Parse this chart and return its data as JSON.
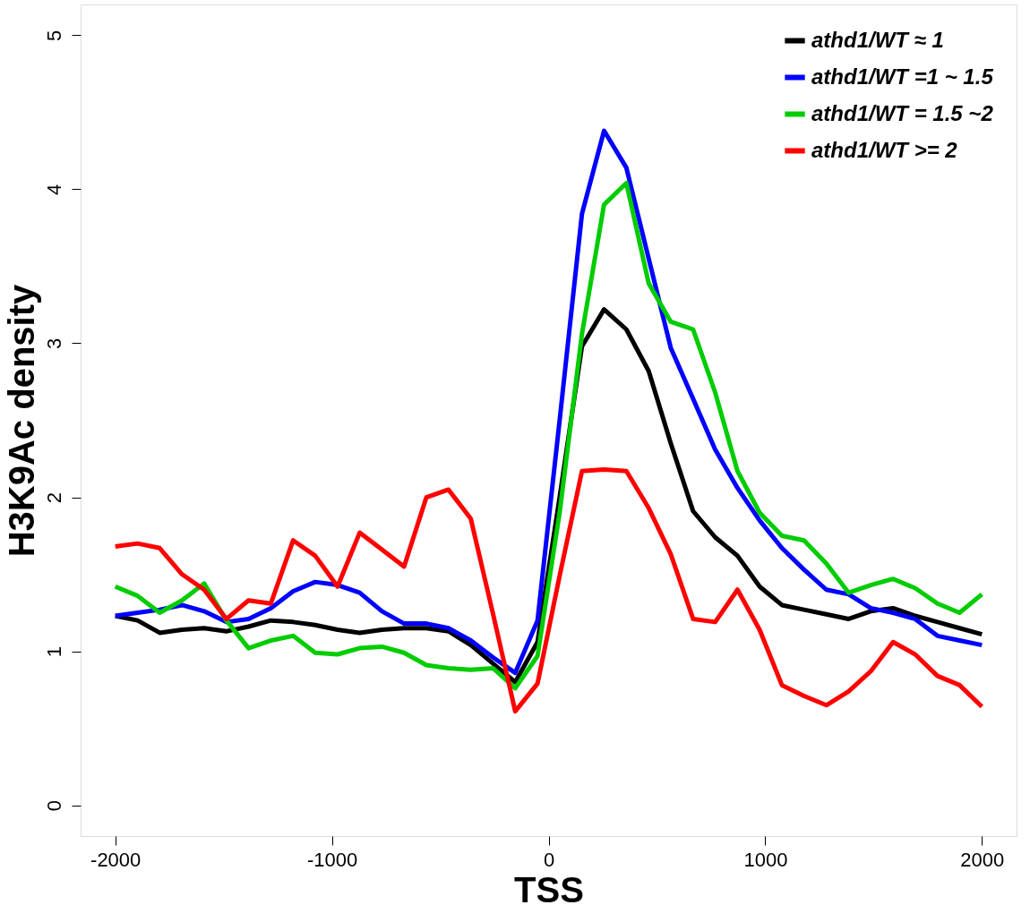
{
  "chart_data": {
    "type": "line",
    "xlabel": "TSS",
    "ylabel": "H3K9Ac density",
    "x": [
      -2000,
      -1897,
      -1795,
      -1692,
      -1590,
      -1487,
      -1385,
      -1282,
      -1179,
      -1077,
      -974,
      -872,
      -769,
      -667,
      -564,
      -462,
      -359,
      -256,
      -154,
      -51,
      51,
      154,
      256,
      359,
      462,
      564,
      667,
      769,
      872,
      974,
      1077,
      1179,
      1282,
      1385,
      1487,
      1590,
      1692,
      1795,
      1897,
      2000
    ],
    "series": [
      {
        "name": "athd1/WT ≈ 1",
        "color": "#000000",
        "values": [
          1.23,
          1.2,
          1.12,
          1.14,
          1.15,
          1.13,
          1.16,
          1.2,
          1.19,
          1.17,
          1.14,
          1.12,
          1.14,
          1.15,
          1.15,
          1.13,
          1.04,
          0.92,
          0.8,
          1.06,
          2.0,
          2.98,
          3.22,
          3.09,
          2.82,
          2.35,
          1.91,
          1.74,
          1.62,
          1.42,
          1.3,
          1.27,
          1.24,
          1.21,
          1.26,
          1.28,
          1.23,
          1.19,
          1.15,
          1.11
        ]
      },
      {
        "name": "athd1/WT =1 ~ 1.5",
        "color": "#0000ff",
        "values": [
          1.23,
          1.25,
          1.27,
          1.3,
          1.26,
          1.19,
          1.21,
          1.28,
          1.39,
          1.45,
          1.43,
          1.38,
          1.26,
          1.18,
          1.18,
          1.15,
          1.07,
          0.96,
          0.86,
          1.2,
          2.5,
          3.84,
          4.38,
          4.14,
          3.55,
          2.97,
          2.64,
          2.31,
          2.06,
          1.85,
          1.67,
          1.53,
          1.4,
          1.37,
          1.28,
          1.25,
          1.21,
          1.1,
          1.07,
          1.04
        ]
      },
      {
        "name": "athd1/WT = 1.5 ~2",
        "color": "#00cc00",
        "values": [
          1.42,
          1.36,
          1.25,
          1.33,
          1.44,
          1.2,
          1.02,
          1.07,
          1.1,
          0.99,
          0.98,
          1.02,
          1.03,
          0.99,
          0.91,
          0.89,
          0.88,
          0.89,
          0.76,
          0.97,
          1.9,
          3.06,
          3.9,
          4.04,
          3.39,
          3.14,
          3.09,
          2.68,
          2.17,
          1.9,
          1.75,
          1.72,
          1.57,
          1.38,
          1.43,
          1.47,
          1.41,
          1.31,
          1.25,
          1.37
        ]
      },
      {
        "name": "athd1/WT >= 2",
        "color": "#ff0000",
        "values": [
          1.68,
          1.7,
          1.67,
          1.5,
          1.4,
          1.21,
          1.33,
          1.31,
          1.72,
          1.62,
          1.42,
          1.77,
          1.66,
          1.55,
          2.0,
          2.05,
          1.86,
          1.24,
          0.61,
          0.79,
          1.49,
          2.17,
          2.18,
          2.17,
          1.93,
          1.63,
          1.21,
          1.19,
          1.4,
          1.14,
          0.78,
          0.71,
          0.65,
          0.74,
          0.87,
          1.06,
          0.98,
          0.84,
          0.78,
          0.64
        ]
      }
    ],
    "xlim": [
      -2160,
      2160
    ],
    "xticks": [
      -2000,
      -1000,
      0,
      1000,
      2000
    ],
    "ylim": [
      -0.2,
      5.2
    ],
    "yticks": [
      0,
      1,
      2,
      3,
      4,
      5
    ],
    "grid": false,
    "legend": "top right",
    "marker": "none",
    "line_style": "solid"
  }
}
